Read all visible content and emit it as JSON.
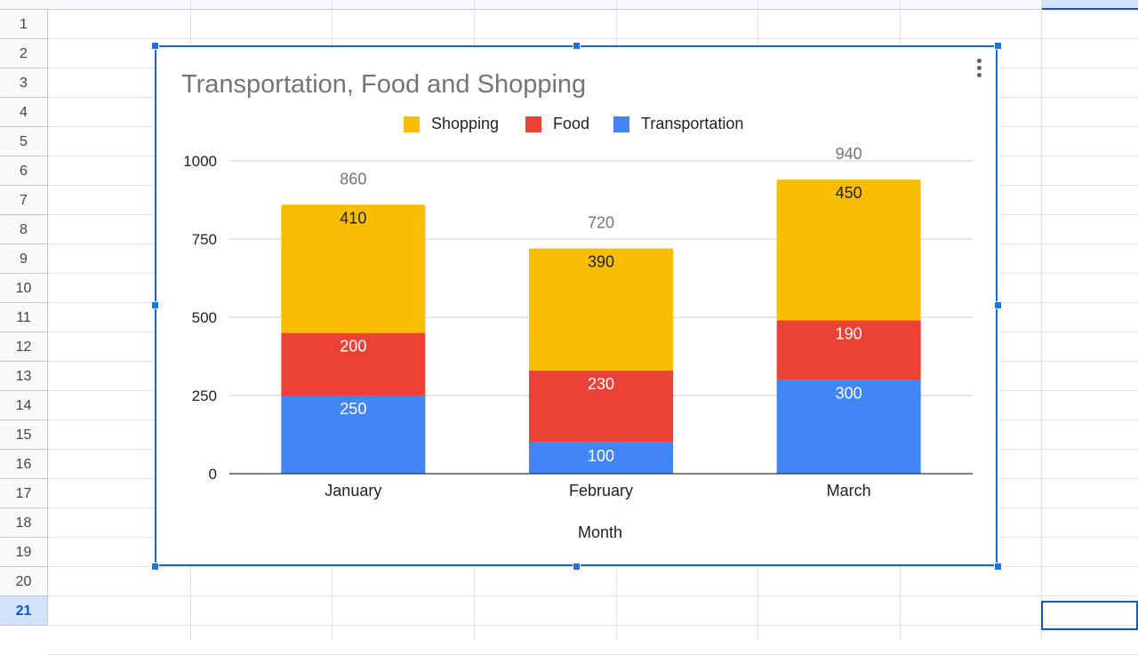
{
  "sheet": {
    "rows": [
      "1",
      "2",
      "3",
      "4",
      "5",
      "6",
      "7",
      "8",
      "9",
      "10",
      "11",
      "12",
      "13",
      "14",
      "15",
      "16",
      "17",
      "18",
      "19",
      "20",
      "21"
    ],
    "active_row": "21"
  },
  "chart": {
    "title": "Transportation, Food and Shopping",
    "menu_icon": "more-vert-icon",
    "legend": [
      {
        "name": "Shopping",
        "color": "#fbbc04"
      },
      {
        "name": "Food",
        "color": "#ea4335"
      },
      {
        "name": "Transportation",
        "color": "#4285f4"
      }
    ]
  },
  "chart_data": {
    "type": "bar",
    "stacked": true,
    "title": "Transportation, Food and Shopping",
    "xlabel": "Month",
    "ylabel": "",
    "ylim": [
      0,
      1000
    ],
    "yticks": [
      "0",
      "250",
      "500",
      "750",
      "1000"
    ],
    "categories": [
      "January",
      "February",
      "March"
    ],
    "series": [
      {
        "name": "Transportation",
        "color": "#4285f4",
        "values": [
          250,
          100,
          300
        ]
      },
      {
        "name": "Food",
        "color": "#ea4335",
        "values": [
          200,
          230,
          190
        ]
      },
      {
        "name": "Shopping",
        "color": "#fbbc04",
        "values": [
          410,
          390,
          450
        ]
      }
    ],
    "totals": [
      860,
      720,
      940
    ],
    "legend_position": "top"
  }
}
